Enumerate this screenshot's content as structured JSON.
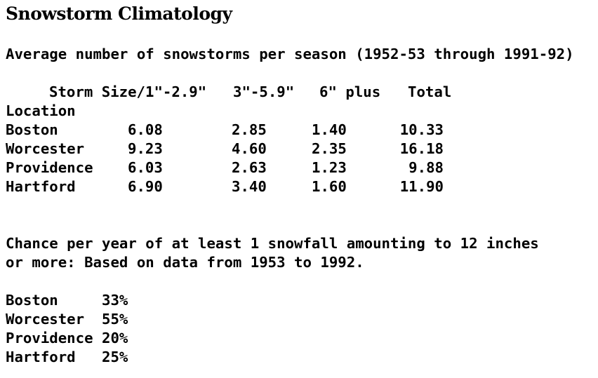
{
  "title": "Snowstorm Climatology",
  "subtitle": "Average number of snowstorms per season (1952-53 through 1991-92)",
  "storm_table": {
    "header": {
      "size1": "Storm Size/1\"-2.9\"",
      "size2": "3\"-5.9\"",
      "size3": "6\" plus",
      "total": "Total"
    },
    "row_header": "Location",
    "rows": [
      {
        "location": "Boston",
        "s1": "6.08",
        "s2": "2.85",
        "s3": "1.40",
        "total": "10.33"
      },
      {
        "location": "Worcester",
        "s1": "9.23",
        "s2": "4.60",
        "s3": "2.35",
        "total": "16.18"
      },
      {
        "location": "Providence",
        "s1": "6.03",
        "s2": "2.63",
        "s3": "1.23",
        "total": "9.88"
      },
      {
        "location": "Hartford",
        "s1": "6.90",
        "s2": "3.40",
        "s3": "1.60",
        "total": "11.90"
      }
    ]
  },
  "chance_note": {
    "line1": "Chance per year of at least 1 snowfall amounting to 12 inches",
    "line2": "or more: Based on data from 1953 to 1992."
  },
  "chance_table": {
    "rows": [
      {
        "location": "Boston",
        "chance": "33%"
      },
      {
        "location": "Worcester",
        "chance": "55%"
      },
      {
        "location": "Providence",
        "chance": "20%"
      },
      {
        "location": "Hartford",
        "chance": "25%"
      }
    ]
  }
}
